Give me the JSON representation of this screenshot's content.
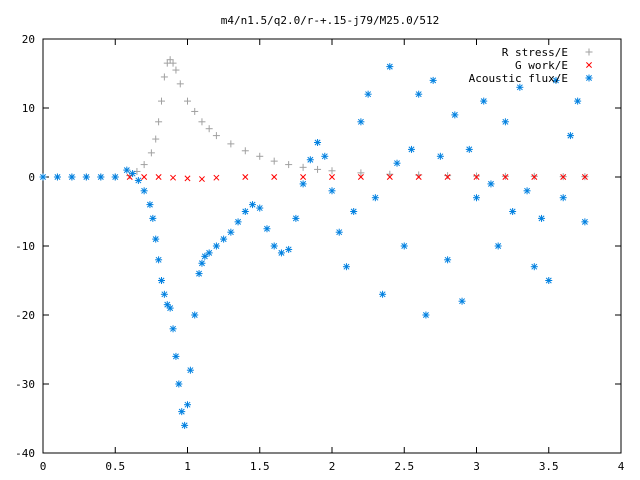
{
  "chart_data": {
    "type": "scatter",
    "title": "m4/n1.5/q2.0/r-+.15-j79/M25.0/512",
    "xlabel": "",
    "ylabel": "",
    "xlim": [
      0,
      4
    ],
    "ylim": [
      -40,
      20
    ],
    "x_ticks": [
      "0",
      "0.5",
      "1",
      "1.5",
      "2",
      "2.5",
      "3",
      "3.5",
      "4"
    ],
    "y_ticks": [
      "20",
      "10",
      "0",
      "-10",
      "-20",
      "-30",
      "-40"
    ],
    "legend_position": "top-right",
    "grid": false,
    "series": [
      {
        "name": "R stress/E",
        "marker": "plus",
        "color": "#a0a0a0",
        "x": [
          0.0,
          0.1,
          0.2,
          0.3,
          0.4,
          0.5,
          0.6,
          0.65,
          0.7,
          0.75,
          0.78,
          0.8,
          0.82,
          0.84,
          0.86,
          0.88,
          0.9,
          0.92,
          0.95,
          1.0,
          1.05,
          1.1,
          1.15,
          1.2,
          1.3,
          1.4,
          1.5,
          1.6,
          1.7,
          1.8,
          1.9,
          2.0,
          2.2,
          2.4,
          2.6,
          2.8,
          3.0,
          3.2,
          3.4,
          3.6,
          3.75
        ],
        "y": [
          0.0,
          0.0,
          0.0,
          0.0,
          0.0,
          0.0,
          0.2,
          0.8,
          1.8,
          3.5,
          5.5,
          8.0,
          11.0,
          14.5,
          16.5,
          17.0,
          16.5,
          15.5,
          13.5,
          11.0,
          9.5,
          8.0,
          7.0,
          6.0,
          4.8,
          3.8,
          3.0,
          2.3,
          1.8,
          1.4,
          1.1,
          0.9,
          0.6,
          0.4,
          0.3,
          0.2,
          0.15,
          0.1,
          0.1,
          0.05,
          0.05
        ]
      },
      {
        "name": "G work/E",
        "marker": "cross",
        "color": "#ff0000",
        "x": [
          0.6,
          0.7,
          0.8,
          0.9,
          1.0,
          1.1,
          1.2,
          1.4,
          1.6,
          1.8,
          2.0,
          2.2,
          2.4,
          2.6,
          2.8,
          3.0,
          3.2,
          3.4,
          3.6,
          3.75
        ],
        "y": [
          0.0,
          0.0,
          0.0,
          -0.1,
          -0.2,
          -0.3,
          -0.1,
          0.0,
          0.0,
          0.0,
          0.0,
          0.0,
          0.0,
          0.0,
          0.0,
          0.0,
          0.0,
          0.0,
          0.0,
          0.0
        ]
      },
      {
        "name": "Acoustic flux/E",
        "marker": "star",
        "color": "#0080e0",
        "x": [
          0.0,
          0.1,
          0.2,
          0.3,
          0.4,
          0.5,
          0.58,
          0.62,
          0.66,
          0.7,
          0.74,
          0.76,
          0.78,
          0.8,
          0.82,
          0.84,
          0.86,
          0.88,
          0.9,
          0.92,
          0.94,
          0.96,
          0.98,
          1.0,
          1.02,
          1.05,
          1.08,
          1.1,
          1.12,
          1.15,
          1.2,
          1.25,
          1.3,
          1.35,
          1.4,
          1.45,
          1.5,
          1.55,
          1.6,
          1.65,
          1.7,
          1.75,
          1.8,
          1.85,
          1.9,
          1.95,
          2.0,
          2.05,
          2.1,
          2.15,
          2.2,
          2.25,
          2.3,
          2.35,
          2.4,
          2.45,
          2.5,
          2.55,
          2.6,
          2.65,
          2.7,
          2.75,
          2.8,
          2.85,
          2.9,
          2.95,
          3.0,
          3.05,
          3.1,
          3.15,
          3.2,
          3.25,
          3.3,
          3.35,
          3.4,
          3.45,
          3.5,
          3.55,
          3.6,
          3.65,
          3.7,
          3.75
        ],
        "y": [
          0.0,
          0.0,
          0.0,
          0.0,
          0.0,
          0.0,
          1.0,
          0.5,
          -0.5,
          -2.0,
          -4.0,
          -6.0,
          -9.0,
          -12.0,
          -15.0,
          -17.0,
          -18.5,
          -19.0,
          -22.0,
          -26.0,
          -30.0,
          -34.0,
          -36.0,
          -33.0,
          -28.0,
          -20.0,
          -14.0,
          -12.5,
          -11.5,
          -11.0,
          -10.0,
          -9.0,
          -8.0,
          -6.5,
          -5.0,
          -4.0,
          -4.5,
          -7.5,
          -10.0,
          -11.0,
          -10.5,
          -6.0,
          -1.0,
          2.5,
          5.0,
          3.0,
          -2.0,
          -8.0,
          -13.0,
          -5.0,
          8.0,
          12.0,
          -3.0,
          -17.0,
          16.0,
          2.0,
          -10.0,
          4.0,
          12.0,
          -20.0,
          14.0,
          3.0,
          -12.0,
          9.0,
          -18.0,
          4.0,
          -3.0,
          11.0,
          -1.0,
          -10.0,
          8.0,
          -5.0,
          13.0,
          -2.0,
          -13.0,
          -6.0,
          -15.0,
          14.0,
          -3.0,
          6.0,
          11.0,
          -6.5
        ]
      }
    ]
  }
}
